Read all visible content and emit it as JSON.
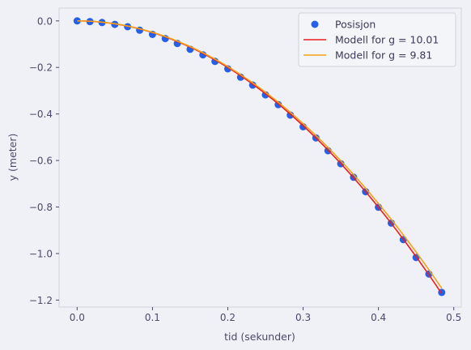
{
  "chart_data": {
    "type": "scatter",
    "title": "",
    "xlabel": "tid (sekunder)",
    "ylabel": "y (meter)",
    "xlim": [
      -0.024,
      0.51
    ],
    "ylim": [
      -1.23,
      0.055
    ],
    "x_ticks": [
      0.0,
      0.1,
      0.2,
      0.3,
      0.4,
      0.5
    ],
    "x_tick_labels": [
      "0.0",
      "0.1",
      "0.2",
      "0.3",
      "0.4",
      "0.5"
    ],
    "y_ticks": [
      0.0,
      -0.2,
      -0.4,
      -0.6,
      -0.8,
      -1.0,
      -1.2
    ],
    "y_tick_labels": [
      "0.0",
      "−0.2",
      "−0.4",
      "−0.6",
      "−0.8",
      "−1.0",
      "−1.2"
    ],
    "grid": false,
    "legend_position": "top-right",
    "series": [
      {
        "name": "Posisjon",
        "kind": "scatter",
        "color": "#2461e8",
        "x": [
          0.0,
          0.017,
          0.033,
          0.05,
          0.067,
          0.083,
          0.1,
          0.117,
          0.133,
          0.15,
          0.167,
          0.183,
          0.2,
          0.217,
          0.233,
          0.25,
          0.267,
          0.283,
          0.3,
          0.317,
          0.333,
          0.35,
          0.367,
          0.383,
          0.4,
          0.417,
          0.433,
          0.45,
          0.467,
          0.484
        ],
        "y": [
          0.0,
          -0.003,
          -0.007,
          -0.015,
          -0.025,
          -0.04,
          -0.058,
          -0.076,
          -0.097,
          -0.122,
          -0.146,
          -0.174,
          -0.206,
          -0.242,
          -0.276,
          -0.318,
          -0.36,
          -0.405,
          -0.455,
          -0.503,
          -0.558,
          -0.614,
          -0.672,
          -0.734,
          -0.801,
          -0.869,
          -0.94,
          -1.017,
          -1.088,
          -1.167
        ]
      },
      {
        "name": "Modell for g = 10.01",
        "kind": "line",
        "color": "#ee1c1c",
        "g": 10.01
      },
      {
        "name": "Modell for g = 9.81",
        "kind": "line",
        "color": "#f5a117",
        "g": 9.81
      }
    ]
  }
}
